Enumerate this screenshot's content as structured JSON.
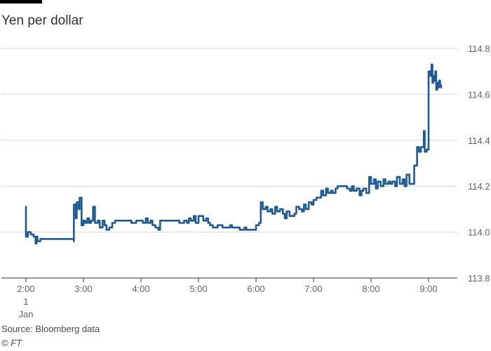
{
  "header": {
    "title": "Yen per dollar"
  },
  "footer": {
    "source": "Source: Bloomberg data",
    "copyright": "© FT"
  },
  "colors": {
    "line": "#1d5a94",
    "grid": "#d9d5d0",
    "axis": "#33302e",
    "tick_text": "#66605c",
    "text": "#33302e"
  },
  "chart_data": {
    "type": "line",
    "title": "Yen per dollar",
    "xlabel": "",
    "ylabel": "",
    "ylim": [
      113.8,
      114.8
    ],
    "xlim": [
      "01:53",
      "09:23"
    ],
    "grid": true,
    "y_axis_side": "right",
    "yticks": [
      114.8,
      114.6,
      114.4,
      114.2,
      114.0,
      113.8
    ],
    "xticks": [
      {
        "x": "02:00",
        "label": "2:00",
        "sublabel_1": "1",
        "sublabel_2": "Jan"
      },
      {
        "x": "03:00",
        "label": "3:00"
      },
      {
        "x": "04:00",
        "label": "4:00"
      },
      {
        "x": "05:00",
        "label": "5:00"
      },
      {
        "x": "06:00",
        "label": "6:00"
      },
      {
        "x": "07:00",
        "label": "7:00"
      },
      {
        "x": "08:00",
        "label": "8:00"
      },
      {
        "x": "09:00",
        "label": "9:00"
      }
    ],
    "series": [
      {
        "values": [
          [
            "02:00",
            114.11
          ],
          [
            "02:00",
            113.98
          ],
          [
            "02:02",
            114.0
          ],
          [
            "02:05",
            113.99
          ],
          [
            "02:08",
            113.98
          ],
          [
            "02:10",
            113.95
          ],
          [
            "02:11",
            113.98
          ],
          [
            "02:12",
            113.96
          ],
          [
            "02:15",
            113.97
          ],
          [
            "02:50",
            113.96
          ],
          [
            "02:50",
            114.01
          ],
          [
            "02:50",
            114.12
          ],
          [
            "02:52",
            114.06
          ],
          [
            "02:53",
            114.13
          ],
          [
            "02:55",
            114.1
          ],
          [
            "02:56",
            114.15
          ],
          [
            "02:58",
            114.03
          ],
          [
            "03:00",
            114.05
          ],
          [
            "03:02",
            114.04
          ],
          [
            "03:04",
            114.06
          ],
          [
            "03:06",
            114.04
          ],
          [
            "03:08",
            114.05
          ],
          [
            "03:10",
            114.11
          ],
          [
            "03:12",
            114.04
          ],
          [
            "03:15",
            114.05
          ],
          [
            "03:17",
            114.02
          ],
          [
            "03:20",
            114.05
          ],
          [
            "03:22",
            114.03
          ],
          [
            "03:24",
            114.01
          ],
          [
            "03:27",
            114.02
          ],
          [
            "03:30",
            114.04
          ],
          [
            "03:33",
            114.05
          ],
          [
            "03:40",
            114.05
          ],
          [
            "03:50",
            114.04
          ],
          [
            "03:55",
            114.05
          ],
          [
            "04:02",
            114.04
          ],
          [
            "04:05",
            114.06
          ],
          [
            "04:07",
            114.04
          ],
          [
            "04:10",
            114.05
          ],
          [
            "04:12",
            114.03
          ],
          [
            "04:15",
            114.02
          ],
          [
            "04:18",
            114.01
          ],
          [
            "04:20",
            114.05
          ],
          [
            "04:30",
            114.05
          ],
          [
            "04:40",
            114.04
          ],
          [
            "04:45",
            114.05
          ],
          [
            "04:48",
            114.04
          ],
          [
            "04:50",
            114.06
          ],
          [
            "04:52",
            114.05
          ],
          [
            "04:55",
            114.07
          ],
          [
            "04:57",
            114.04
          ],
          [
            "05:00",
            114.07
          ],
          [
            "05:05",
            114.05
          ],
          [
            "05:08",
            114.06
          ],
          [
            "05:10",
            114.04
          ],
          [
            "05:12",
            114.03
          ],
          [
            "05:15",
            114.02
          ],
          [
            "05:20",
            114.03
          ],
          [
            "05:25",
            114.02
          ],
          [
            "05:33",
            114.03
          ],
          [
            "05:35",
            114.02
          ],
          [
            "05:40",
            114.02
          ],
          [
            "05:43",
            114.01
          ],
          [
            "05:48",
            114.02
          ],
          [
            "05:50",
            114.01
          ],
          [
            "05:55",
            114.01
          ],
          [
            "06:00",
            114.03
          ],
          [
            "06:03",
            114.04
          ],
          [
            "06:05",
            114.13
          ],
          [
            "06:07",
            114.1
          ],
          [
            "06:10",
            114.11
          ],
          [
            "06:12",
            114.09
          ],
          [
            "06:15",
            114.1
          ],
          [
            "06:17",
            114.08
          ],
          [
            "06:20",
            114.11
          ],
          [
            "06:22",
            114.09
          ],
          [
            "06:25",
            114.1
          ],
          [
            "06:28",
            114.08
          ],
          [
            "06:30",
            114.06
          ],
          [
            "06:32",
            114.09
          ],
          [
            "06:35",
            114.07
          ],
          [
            "06:40",
            114.08
          ],
          [
            "06:42",
            114.11
          ],
          [
            "06:45",
            114.1
          ],
          [
            "06:48",
            114.09
          ],
          [
            "06:50",
            114.12
          ],
          [
            "06:52",
            114.1
          ],
          [
            "06:55",
            114.13
          ],
          [
            "06:58",
            114.12
          ],
          [
            "07:00",
            114.14
          ],
          [
            "07:03",
            114.15
          ],
          [
            "07:06",
            114.15
          ],
          [
            "07:08",
            114.18
          ],
          [
            "07:10",
            114.16
          ],
          [
            "07:13",
            114.19
          ],
          [
            "07:15",
            114.17
          ],
          [
            "07:18",
            114.18
          ],
          [
            "07:20",
            114.17
          ],
          [
            "07:23",
            114.19
          ],
          [
            "07:25",
            114.2
          ],
          [
            "07:30",
            114.2
          ],
          [
            "07:35",
            114.19
          ],
          [
            "07:38",
            114.18
          ],
          [
            "07:40",
            114.2
          ],
          [
            "07:42",
            114.18
          ],
          [
            "07:45",
            114.19
          ],
          [
            "07:48",
            114.16
          ],
          [
            "07:50",
            114.18
          ],
          [
            "07:52",
            114.19
          ],
          [
            "07:55",
            114.17
          ],
          [
            "07:58",
            114.24
          ],
          [
            "08:00",
            114.21
          ],
          [
            "08:03",
            114.23
          ],
          [
            "08:05",
            114.19
          ],
          [
            "08:07",
            114.22
          ],
          [
            "08:10",
            114.2
          ],
          [
            "08:13",
            114.23
          ],
          [
            "08:15",
            114.21
          ],
          [
            "08:18",
            114.22
          ],
          [
            "08:20",
            114.21
          ],
          [
            "08:22",
            114.22
          ],
          [
            "08:25",
            114.2
          ],
          [
            "08:27",
            114.24
          ],
          [
            "08:30",
            114.21
          ],
          [
            "08:33",
            114.23
          ],
          [
            "08:35",
            114.2
          ],
          [
            "08:37",
            114.25
          ],
          [
            "08:40",
            114.21
          ],
          [
            "08:45",
            114.29
          ],
          [
            "08:48",
            114.37
          ],
          [
            "08:50",
            114.35
          ],
          [
            "08:52",
            114.37
          ],
          [
            "08:55",
            114.44
          ],
          [
            "08:56",
            114.35
          ],
          [
            "08:58",
            114.36
          ],
          [
            "09:00",
            114.7
          ],
          [
            "09:02",
            114.68
          ],
          [
            "09:03",
            114.73
          ],
          [
            "09:04",
            114.65
          ],
          [
            "09:05",
            114.68
          ],
          [
            "09:06",
            114.66
          ],
          [
            "09:07",
            114.7
          ],
          [
            "09:08",
            114.62
          ],
          [
            "09:09",
            114.65
          ],
          [
            "09:10",
            114.63
          ],
          [
            "09:11",
            114.66
          ],
          [
            "09:12",
            114.64
          ],
          [
            "09:13",
            114.63
          ]
        ]
      }
    ]
  }
}
